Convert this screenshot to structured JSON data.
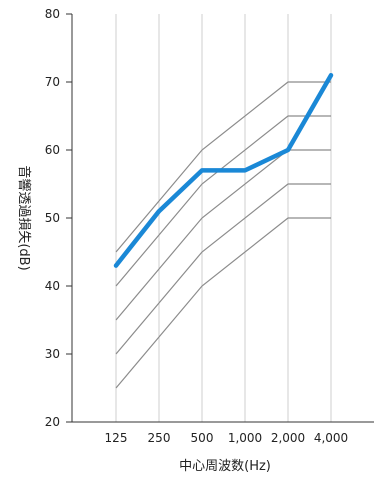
{
  "chart_data": {
    "type": "line",
    "xlabel": "中心周波数(Hz)",
    "ylabel": "音響透過損失(dB)",
    "categories": [
      "125",
      "250",
      "500",
      "1,000",
      "2,000",
      "4,000"
    ],
    "ylim": [
      20,
      80
    ],
    "yticks": [
      20,
      30,
      40,
      50,
      60,
      70,
      80
    ],
    "grid": {
      "vertical": true,
      "horizontal": false
    },
    "legend": "none",
    "colors": {
      "highlight": "#1a88d6",
      "reference": "#8c8c8c",
      "grid": "#cfcfcf",
      "axis": "#333333"
    },
    "reference_series": [
      {
        "values": [
          45,
          52.5,
          60,
          null,
          70,
          70
        ]
      },
      {
        "values": [
          40,
          47.5,
          55,
          null,
          65,
          65
        ]
      },
      {
        "values": [
          35,
          42.5,
          50,
          null,
          60,
          60
        ]
      },
      {
        "values": [
          30,
          37.5,
          45,
          null,
          55,
          55
        ]
      },
      {
        "values": [
          25,
          32.5,
          40,
          null,
          50,
          50
        ]
      }
    ],
    "series": [
      {
        "values": [
          43,
          51,
          57,
          57,
          60,
          71
        ]
      }
    ]
  }
}
